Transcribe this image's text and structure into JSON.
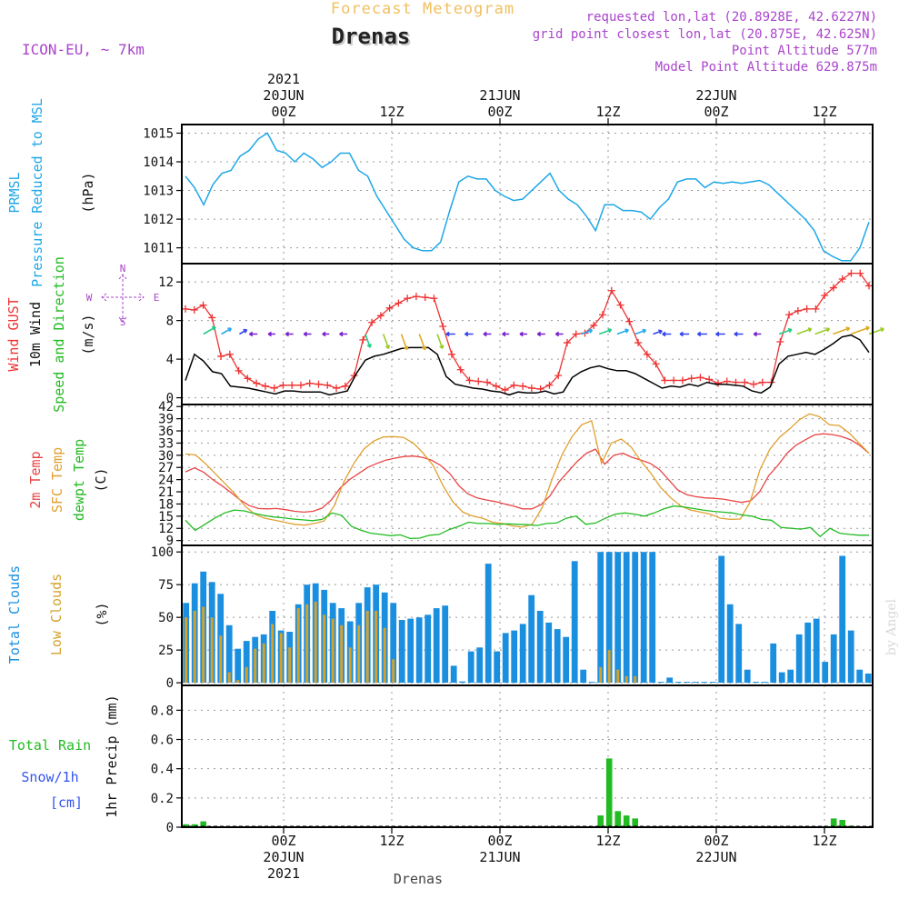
{
  "header": {
    "forecast_title": "Forecast Meteogram",
    "station": "Drenas",
    "model": "ICON-EU, ~ 7km",
    "requested": "requested lon,lat (20.8928E, 42.6227N)",
    "grid_point": "grid point closest lon,lat (20.875E, 42.625N)",
    "point_altitude": "Point Altitude 577m",
    "model_altitude": "Model Point Altitude 629.875m"
  },
  "footer": {
    "station": "Drenas",
    "credit": "by Angel"
  },
  "colors": {
    "pressure": "#1ea7e8",
    "gust": "#ee3333",
    "wind": "#000000",
    "temp2m": "#e84545",
    "sfc": "#e0a030",
    "dewpt": "#22bb22",
    "total_cloud": "#1a8fe0",
    "low_cloud": "#d4a22c",
    "rain": "#22bb22",
    "snow": "#3355ee",
    "info": "#aa44cc"
  },
  "chart_data": [
    {
      "type": "line",
      "title": "PRMSL",
      "ylabel_lines": [
        "PRMSL",
        "Pressure Reduced to MSL",
        "(hPa)"
      ],
      "yticks": [
        1011,
        1012,
        1013,
        1014,
        1015
      ],
      "ylim": [
        1010.45,
        1015.3
      ],
      "grid": true,
      "series": [
        {
          "name": "PRMSL",
          "values": [
            1013.5,
            1013.1,
            1012.5,
            1013.2,
            1013.6,
            1013.7,
            1014.2,
            1014.4,
            1014.8,
            1015.0,
            1014.4,
            1014.3,
            1014.0,
            1014.3,
            1014.1,
            1013.8,
            1014.0,
            1014.3,
            1014.3,
            1013.7,
            1013.5,
            1012.8,
            1012.3,
            1011.8,
            1011.3,
            1011.0,
            1010.9,
            1010.9,
            1011.2,
            1012.3,
            1013.3,
            1013.5,
            1013.4,
            1013.4,
            1013.0,
            1012.8,
            1012.65,
            1012.7,
            1013.0,
            1013.3,
            1013.6,
            1013.0,
            1012.7,
            1012.5,
            1012.1,
            1011.6,
            1012.5,
            1012.5,
            1012.3,
            1012.3,
            1012.25,
            1012.0,
            1012.4,
            1012.7,
            1013.3,
            1013.4,
            1013.4,
            1013.1,
            1013.3,
            1013.25,
            1013.3,
            1013.25,
            1013.3,
            1013.35,
            1013.2,
            1012.9,
            1012.6,
            1012.3,
            1012.0,
            1011.6,
            1010.9,
            1010.7,
            1010.55,
            1010.55,
            1011.0,
            1011.9
          ]
        }
      ]
    },
    {
      "type": "line",
      "title": "Wind",
      "ylabel_lines": [
        "Wind GUST",
        "10m Wind",
        "Speed and Direction",
        "(m/s)"
      ],
      "compass": [
        "N",
        "W",
        "E",
        "S"
      ],
      "yticks": [
        0,
        4,
        8,
        12
      ],
      "ylim": [
        -0.7,
        13.9
      ],
      "grid": true,
      "series": [
        {
          "name": "Wind GUST",
          "values": [
            9.2,
            9.1,
            9.6,
            8.3,
            4.3,
            4.5,
            2.8,
            2.0,
            1.5,
            1.2,
            1.0,
            1.3,
            1.3,
            1.3,
            1.5,
            1.4,
            1.3,
            1.0,
            1.2,
            2.3,
            6.0,
            7.8,
            8.5,
            9.3,
            9.8,
            10.3,
            10.5,
            10.4,
            10.3,
            7.4,
            4.5,
            2.9,
            1.8,
            1.7,
            1.6,
            1.2,
            0.8,
            1.3,
            1.2,
            1.0,
            0.9,
            1.3,
            2.3,
            5.7,
            6.6,
            6.7,
            7.5,
            8.6,
            11.1,
            9.6,
            7.9,
            5.7,
            4.5,
            3.5,
            1.8,
            1.8,
            1.8,
            2.0,
            2.1,
            1.9,
            1.5,
            1.7,
            1.6,
            1.6,
            1.4,
            1.6,
            1.6,
            5.8,
            8.6,
            9.0,
            9.2,
            9.2,
            10.6,
            11.4,
            12.3,
            12.9,
            12.9,
            11.6
          ]
        },
        {
          "name": "10m Wind",
          "values": [
            1.8,
            4.5,
            3.8,
            2.7,
            2.5,
            1.2,
            1.1,
            1.0,
            0.8,
            0.6,
            0.4,
            0.7,
            0.7,
            0.6,
            0.6,
            0.6,
            0.3,
            0.5,
            0.7,
            2.5,
            3.9,
            4.3,
            4.5,
            4.8,
            5.1,
            5.2,
            5.2,
            5.2,
            4.5,
            2.2,
            1.4,
            1.2,
            1.0,
            0.9,
            0.7,
            0.6,
            0.3,
            0.6,
            0.5,
            0.5,
            0.7,
            0.4,
            0.6,
            2.1,
            2.7,
            3.1,
            3.3,
            3.0,
            2.8,
            2.8,
            2.5,
            2.0,
            1.5,
            1.0,
            1.2,
            1.1,
            1.4,
            1.2,
            1.6,
            1.4,
            1.4,
            1.3,
            1.2,
            0.7,
            0.5,
            1.1,
            3.5,
            4.3,
            4.5,
            4.7,
            4.5,
            5.0,
            5.6,
            6.3,
            6.5,
            6.0,
            4.7
          ]
        }
      ]
    },
    {
      "type": "line",
      "title": "Temperature",
      "ylabel_lines": [
        "2m Temp",
        "SFC Temp",
        "dewpt Temp",
        "(C)"
      ],
      "yticks": [
        9,
        12,
        15,
        18,
        21,
        24,
        27,
        30,
        33,
        36,
        39,
        42
      ],
      "ylim": [
        7.8,
        42.5
      ],
      "grid": true,
      "series": [
        {
          "name": "2m Temp",
          "values": [
            25.9,
            26.9,
            25.8,
            24.0,
            22.5,
            20.8,
            19.0,
            17.6,
            16.9,
            16.8,
            16.9,
            16.6,
            16.2,
            16.0,
            16.2,
            17.0,
            19.0,
            22.0,
            24.0,
            25.5,
            27.0,
            28.0,
            28.8,
            29.3,
            29.7,
            29.8,
            29.5,
            28.8,
            27.5,
            25.5,
            22.5,
            20.5,
            19.5,
            19.0,
            18.6,
            18.0,
            17.5,
            16.8,
            16.8,
            17.8,
            20.0,
            23.5,
            26.0,
            28.5,
            30.5,
            31.5,
            27.8,
            30.0,
            30.5,
            29.5,
            28.8,
            28.0,
            26.5,
            24.0,
            21.5,
            20.3,
            19.8,
            19.5,
            19.4,
            19.2,
            18.8,
            18.4,
            18.8,
            21.0,
            25.0,
            27.5,
            30.5,
            32.5,
            33.8,
            35.0,
            35.3,
            35.1,
            34.6,
            33.8,
            32.4,
            30.5
          ]
        },
        {
          "name": "SFC Temp",
          "values": [
            30.3,
            30.1,
            28.0,
            25.5,
            23.0,
            20.5,
            17.5,
            15.5,
            14.5,
            14.0,
            13.5,
            13.0,
            12.8,
            13.2,
            13.8,
            17.5,
            23.5,
            28.0,
            31.5,
            33.5,
            34.5,
            34.6,
            34.4,
            33.0,
            30.5,
            27.5,
            22.5,
            18.5,
            16.0,
            15.0,
            14.5,
            13.5,
            13.2,
            12.6,
            12.3,
            13.0,
            17.0,
            24.0,
            30.0,
            34.5,
            37.5,
            38.5,
            28.0,
            33.0,
            34.0,
            32.0,
            28.5,
            25.5,
            22.0,
            19.5,
            17.5,
            16.5,
            16.0,
            15.5,
            14.5,
            14.2,
            14.3,
            18.5,
            26.5,
            31.5,
            34.5,
            36.5,
            38.8,
            40.2,
            39.5,
            37.5,
            37.3,
            35.5,
            33.0,
            30.5
          ]
        },
        {
          "name": "dewpt Temp",
          "values": [
            14.0,
            11.5,
            13.0,
            14.5,
            15.8,
            16.5,
            16.3,
            15.7,
            15.2,
            14.8,
            14.6,
            14.3,
            14.1,
            13.9,
            14.2,
            15.8,
            15.2,
            12.5,
            11.5,
            10.8,
            10.5,
            10.2,
            10.4,
            9.5,
            9.6,
            10.3,
            10.5,
            11.7,
            12.5,
            13.5,
            13.2,
            13.2,
            13.0,
            13.1,
            13.0,
            12.9,
            12.7,
            13.2,
            13.3,
            14.5,
            15.0,
            13.0,
            13.3,
            14.5,
            15.5,
            15.8,
            15.5,
            15.0,
            15.8,
            16.8,
            17.5,
            17.3,
            16.9,
            16.5,
            16.2,
            16.0,
            15.8,
            15.3,
            15.0,
            14.2,
            14.0,
            12.2,
            12.0,
            11.8,
            12.2,
            10.0,
            12.0,
            10.8,
            10.5,
            10.3,
            10.3
          ]
        }
      ]
    },
    {
      "type": "bar",
      "title": "Clouds",
      "ylabel_lines": [
        "Total Clouds",
        "Low Clouds",
        "(%)"
      ],
      "yticks": [
        0,
        25,
        50,
        75,
        100
      ],
      "ylim": [
        -2,
        105
      ],
      "grid": true,
      "series": [
        {
          "name": "Total Clouds",
          "values": [
            61,
            76,
            85,
            77,
            68,
            44,
            26,
            32,
            35,
            37,
            55,
            40,
            39,
            60,
            75,
            76,
            71,
            61,
            57,
            47,
            61,
            73,
            75,
            69,
            61,
            48,
            49,
            50,
            52,
            57,
            59,
            13,
            1,
            24,
            27,
            91,
            24,
            38,
            40,
            45,
            67,
            55,
            46,
            41,
            35,
            93,
            10,
            0,
            100,
            100,
            100,
            100,
            100,
            100,
            100,
            0,
            4,
            0,
            0,
            0,
            0,
            0,
            97,
            60,
            45,
            10,
            0,
            0,
            30,
            8,
            10,
            37,
            46,
            49,
            16,
            37,
            97,
            40,
            10,
            7
          ]
        },
        {
          "name": "Low Clouds",
          "values": [
            50,
            55,
            58,
            50,
            36,
            8,
            2,
            12,
            26,
            30,
            45,
            38,
            27,
            57,
            60,
            62,
            52,
            49,
            44,
            27,
            44,
            55,
            55,
            42,
            18,
            0,
            0,
            0,
            0,
            0,
            0,
            0,
            0,
            0,
            0,
            0,
            0,
            0,
            0,
            0,
            0,
            0,
            0,
            0,
            0,
            0,
            0,
            0,
            12,
            25,
            10,
            5,
            5,
            0,
            0,
            0,
            0,
            0,
            0,
            0,
            0,
            0,
            0,
            0,
            0,
            0,
            0,
            0,
            0,
            0,
            0,
            0,
            0,
            0,
            0,
            0,
            0,
            0,
            0,
            0
          ]
        }
      ]
    },
    {
      "type": "bar",
      "title": "Precipitation",
      "ylabel_lines": [
        "Total  Rain",
        "Snow/1h",
        "[cm]",
        "1hr Precip (mm)"
      ],
      "yticks": [
        0,
        0.2,
        0.4,
        0.6,
        0.8
      ],
      "ylim": [
        0,
        0.97
      ],
      "grid": true,
      "series": [
        {
          "name": "Total Rain",
          "values": [
            0.02,
            0.02,
            0.04,
            0,
            0,
            0,
            0,
            0,
            0,
            0,
            0,
            0,
            0,
            0,
            0,
            0,
            0,
            0,
            0,
            0,
            0,
            0,
            0,
            0,
            0,
            0,
            0,
            0,
            0,
            0,
            0,
            0,
            0,
            0,
            0,
            0,
            0,
            0,
            0,
            0,
            0,
            0,
            0,
            0,
            0,
            0,
            0,
            0,
            0.08,
            0.47,
            0.11,
            0.08,
            0.06,
            0,
            0,
            0,
            0,
            0,
            0,
            0,
            0,
            0,
            0,
            0,
            0,
            0,
            0,
            0,
            0,
            0,
            0,
            0,
            0,
            0,
            0,
            0.06,
            0.05,
            0.01,
            0,
            0
          ]
        }
      ]
    }
  ],
  "time_axis": {
    "top": [
      {
        "hour": "00Z",
        "date": "20JUN",
        "year": "2021"
      },
      {
        "hour": "12Z",
        "date": "",
        "year": ""
      },
      {
        "hour": "00Z",
        "date": "21JUN",
        "year": ""
      },
      {
        "hour": "12Z",
        "date": "",
        "year": ""
      },
      {
        "hour": "00Z",
        "date": "22JUN",
        "year": ""
      },
      {
        "hour": "12Z",
        "date": "",
        "year": ""
      }
    ],
    "bottom": [
      {
        "hour": "00Z",
        "date": "20JUN",
        "year": "2021"
      },
      {
        "hour": "12Z",
        "date": "",
        "year": ""
      },
      {
        "hour": "00Z",
        "date": "21JUN",
        "year": ""
      },
      {
        "hour": "12Z",
        "date": "",
        "year": ""
      },
      {
        "hour": "00Z",
        "date": "22JUN",
        "year": ""
      },
      {
        "hour": "12Z",
        "date": "",
        "year": ""
      }
    ]
  }
}
